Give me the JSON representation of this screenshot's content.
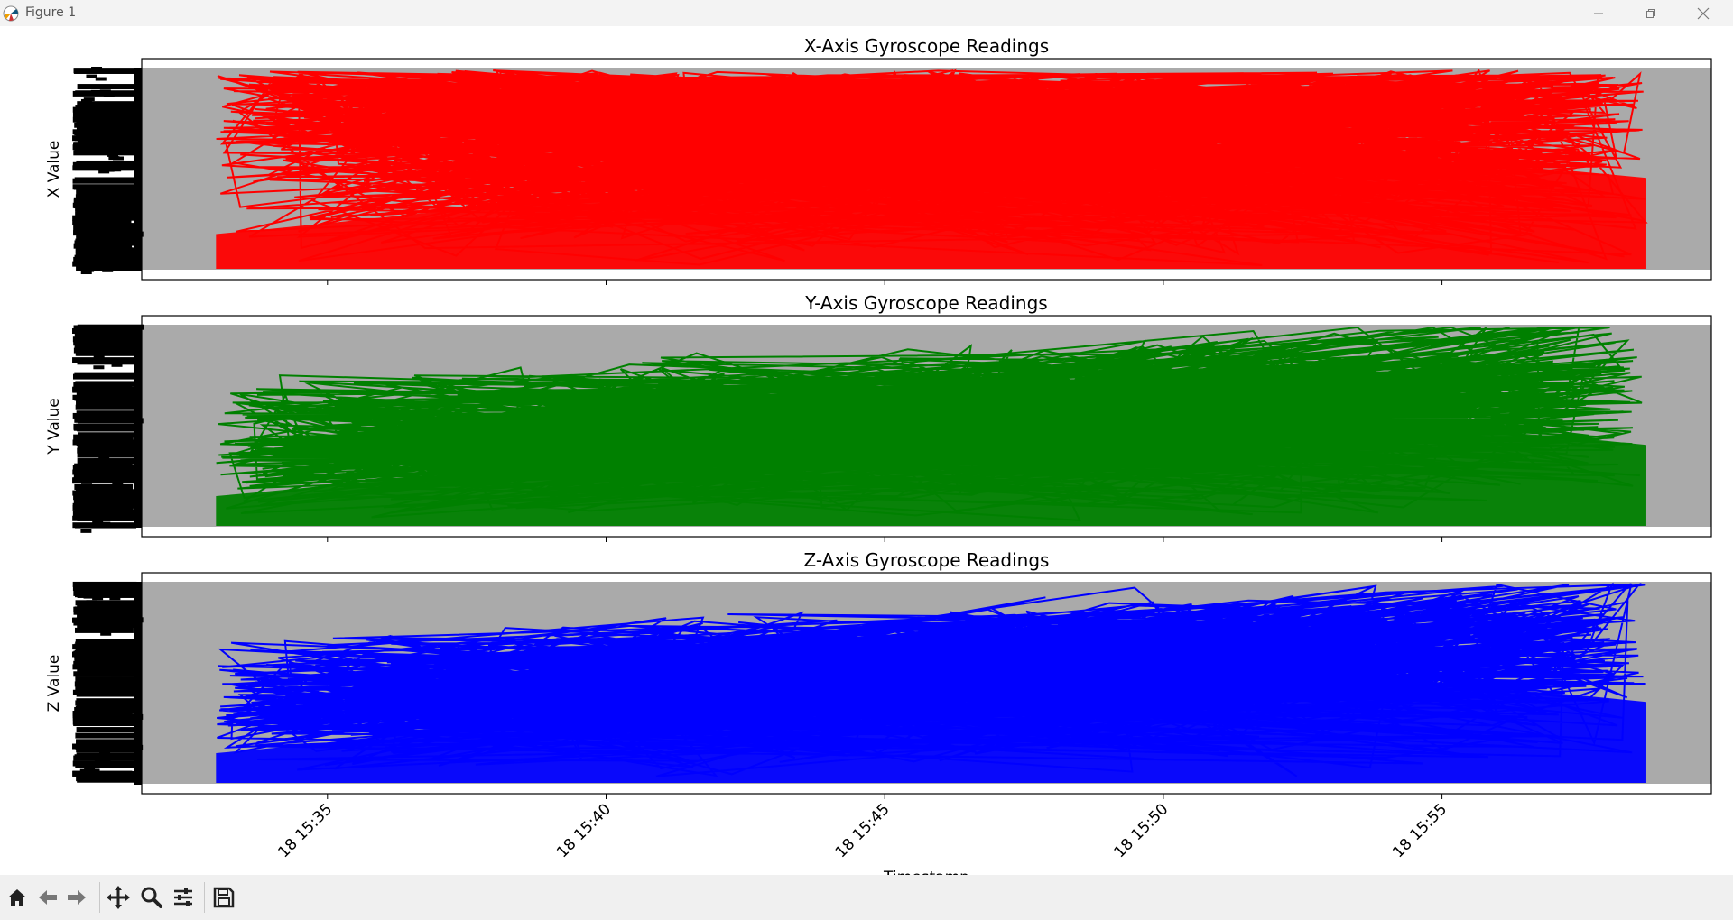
{
  "window": {
    "title": "Figure 1",
    "controls": {
      "minimize": "minimize-icon",
      "restore": "restore-icon",
      "close": "close-icon"
    }
  },
  "toolbar": {
    "buttons": [
      {
        "name": "home-button",
        "icon": "home-icon"
      },
      {
        "name": "back-button",
        "icon": "arrow-left-icon"
      },
      {
        "name": "forward-button",
        "icon": "arrow-right-icon"
      },
      {
        "name": "pan-button",
        "icon": "move-icon"
      },
      {
        "name": "zoom-button",
        "icon": "magnifier-icon"
      },
      {
        "name": "configure-subplots-button",
        "icon": "sliders-icon"
      },
      {
        "name": "save-button",
        "icon": "floppy-disk-icon"
      }
    ]
  },
  "chart_data": [
    {
      "type": "line",
      "title": "X-Axis Gyroscope Readings",
      "ylabel": "X Value",
      "xlabel": "",
      "color": "#ff0000",
      "axes_facecolor": "#aaaaaa",
      "xlim": [
        "15:31:40",
        "15:59:50"
      ],
      "x_range_data": [
        "15:33",
        "15:58:40"
      ],
      "sharex": true
    },
    {
      "type": "line",
      "title": "Y-Axis Gyroscope Readings",
      "ylabel": "Y Value",
      "xlabel": "",
      "color": "#008000",
      "axes_facecolor": "#aaaaaa",
      "xlim": [
        "15:31:40",
        "15:59:50"
      ],
      "x_range_data": [
        "15:33",
        "15:58:40"
      ],
      "sharex": true
    },
    {
      "type": "line",
      "title": "Z-Axis Gyroscope Readings",
      "ylabel": "Z Value",
      "xlabel": "Timestamp",
      "color": "#0000ff",
      "axes_facecolor": "#aaaaaa",
      "xlim": [
        "15:31:40",
        "15:59:50"
      ],
      "x_range_data": [
        "15:33",
        "15:58:40"
      ],
      "x_ticks": [
        "18 15:35",
        "18 15:40",
        "18 15:45",
        "18 15:50",
        "18 15:55"
      ],
      "sharex": true
    }
  ]
}
